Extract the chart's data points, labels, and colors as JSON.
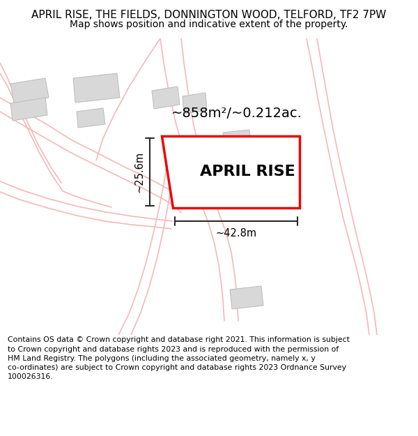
{
  "title": "APRIL RISE, THE FIELDS, DONNINGTON WOOD, TELFORD, TF2 7PW",
  "subtitle": "Map shows position and indicative extent of the property.",
  "footer": "Contains OS data © Crown copyright and database right 2021. This information is subject to Crown copyright and database rights 2023 and is reproduced with the permission of\nHM Land Registry. The polygons (including the associated geometry, namely x, y\nco-ordinates) are subject to Crown copyright and database rights 2023 Ordnance Survey\n100026316.",
  "area_label": "~858m²/~0.212ac.",
  "plot_label": "APRIL RISE",
  "dim_width": "~42.8m",
  "dim_height": "~25.6m",
  "bg_color": "#ffffff",
  "map_bg": "#fefefe",
  "road_color": "#f5b8b8",
  "road_lw": 1.2,
  "building_fill": "#d8d8d8",
  "building_edge": "#bbbbbb",
  "plot_fill": "#ffffff",
  "plot_edge": "#ee0000",
  "plot_edge_lw": 2.5,
  "dim_color": "#2a2a2a",
  "title_fontsize": 11,
  "subtitle_fontsize": 10,
  "label_fontsize": 16,
  "area_fontsize": 14,
  "footer_fontsize": 7.8,
  "note_color": "#888888"
}
